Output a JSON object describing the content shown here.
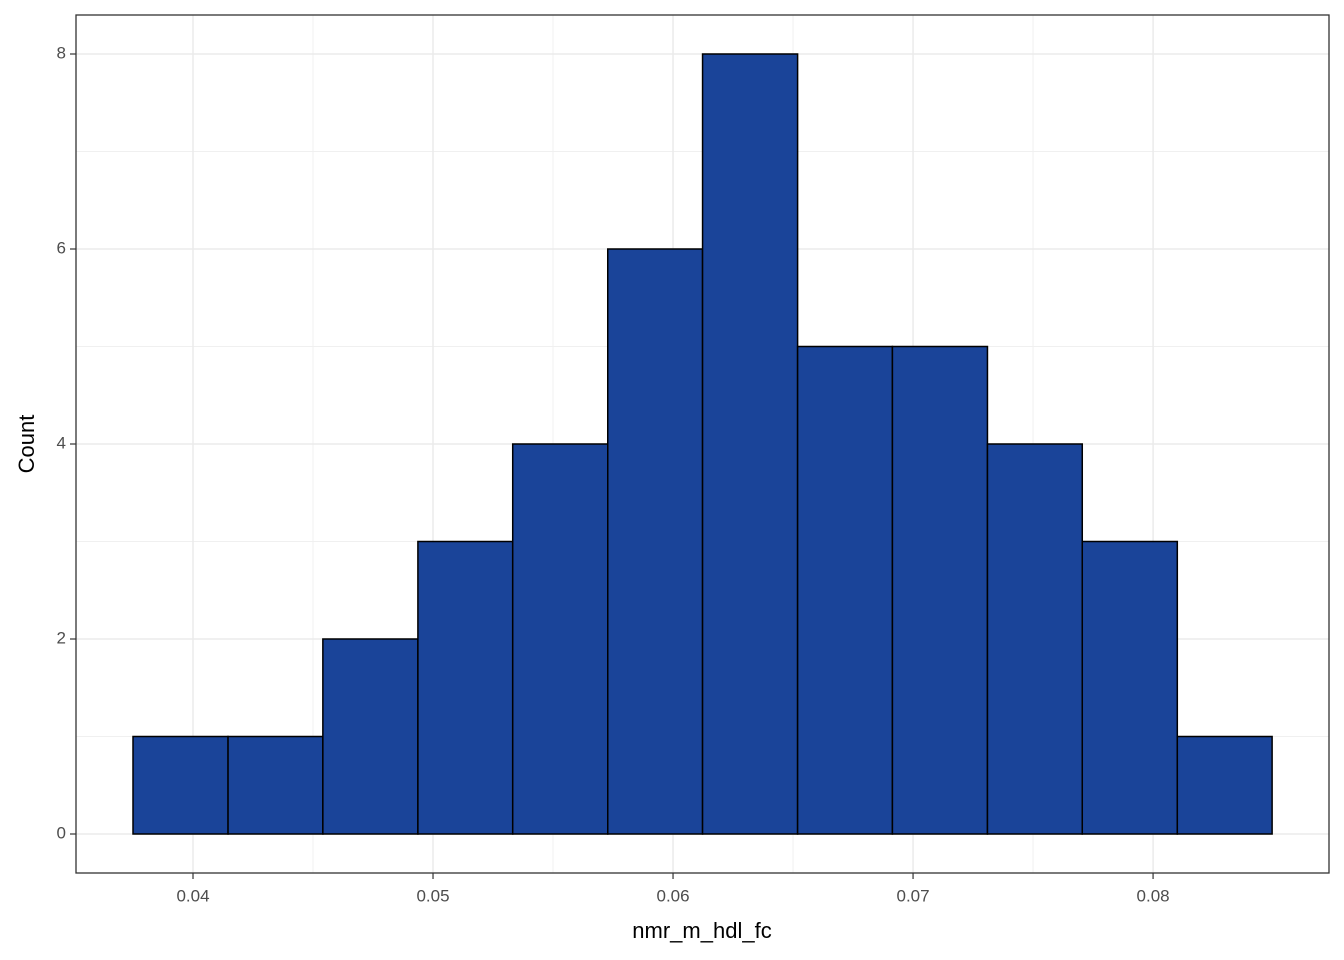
{
  "chart_data": {
    "type": "histogram",
    "x_label": "nmr_m_hdl_fc",
    "y_label": "Count",
    "bins": [
      0.0375,
      0.04146,
      0.04541,
      0.04937,
      0.05332,
      0.05728,
      0.06123,
      0.06519,
      0.06914,
      0.0731,
      0.07705,
      0.08101,
      0.08496
    ],
    "values": [
      1,
      1,
      2,
      3,
      4,
      6,
      8,
      5,
      5,
      4,
      3,
      1
    ],
    "color": "#1a4499",
    "edge_color": "#000000",
    "xlim": [
      0.035125,
      0.08733
    ],
    "xticks": [
      0.04,
      0.05,
      0.06,
      0.07,
      0.08
    ],
    "ylim": [
      -0.4,
      8.4
    ],
    "yticks": [
      0,
      2,
      4,
      6,
      8
    ],
    "grid": true
  }
}
